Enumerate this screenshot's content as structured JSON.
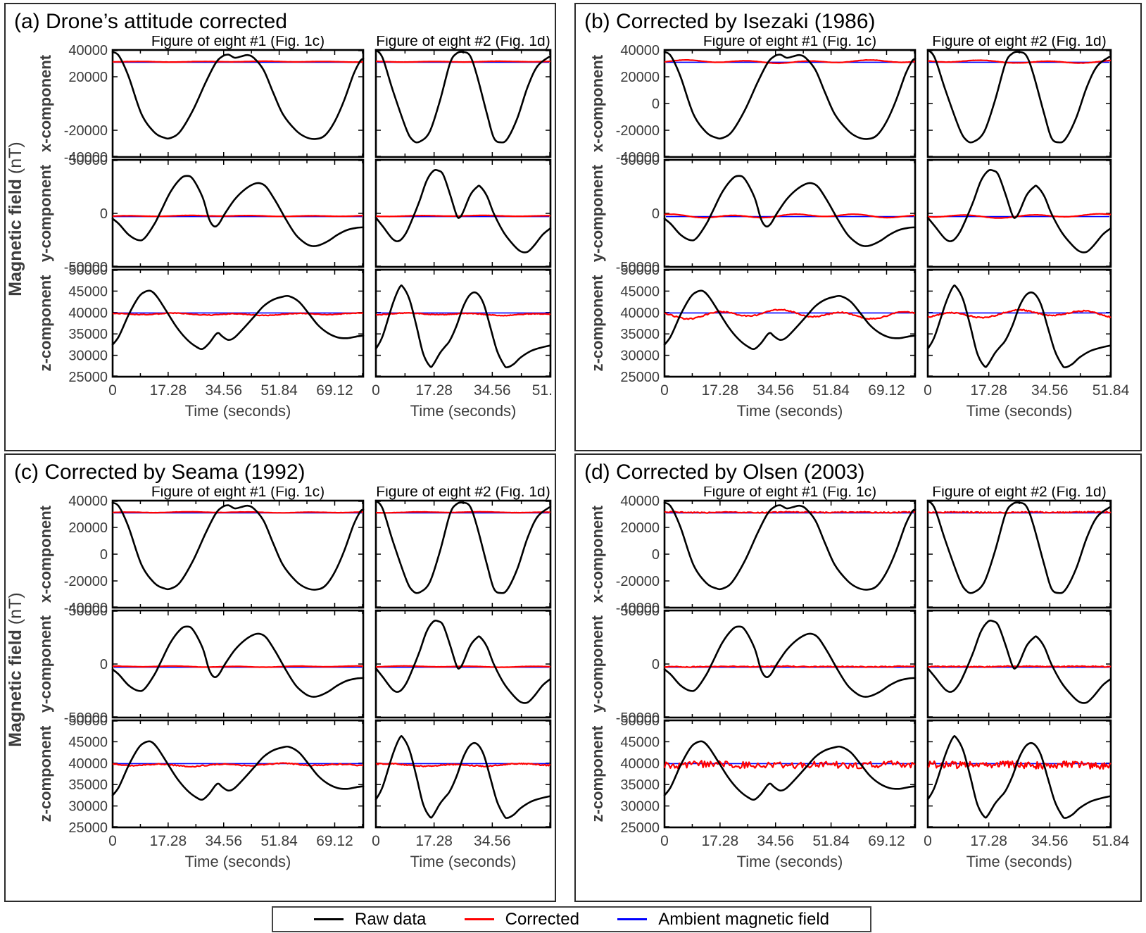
{
  "chart_data": {
    "type": "line",
    "figure_kind": "multi-panel magnetometer calibration comparison",
    "legend": {
      "position": "bottom",
      "entries": [
        {
          "label": "Raw data",
          "color": "#000000"
        },
        {
          "label": "Corrected",
          "color": "#ff0000"
        },
        {
          "label": "Ambient magnetic field",
          "color": "#0000ff"
        }
      ]
    },
    "ylabel": {
      "bold": "Magnetic field",
      "normal": " (nT)"
    },
    "columns": [
      {
        "id": "fig8_1",
        "title": "Figure of eight #1  (Fig. 1c)",
        "xlabel": "Time (seconds)",
        "xlim": [
          0,
          78
        ],
        "xticks": [
          0,
          17.28,
          34.56,
          51.84,
          69.12
        ],
        "minor_step": 8.64
      },
      {
        "id": "fig8_2",
        "title": "Figure of eight #2 (Fig. 1d)",
        "xlabel": "Time (seconds)",
        "xlim": [
          0,
          51.84
        ],
        "xticks": [
          0,
          17.28,
          34.56,
          51.84
        ],
        "minor_step": 8.64
      }
    ],
    "rows": [
      {
        "component": "x-component",
        "key": "x",
        "ylim": [
          -40000,
          40000
        ],
        "yticks": [
          40000,
          20000,
          0,
          -20000,
          -40000
        ]
      },
      {
        "component": "y-component",
        "key": "y",
        "ylim": [
          -50000,
          50000
        ],
        "yticks": [
          50000,
          0,
          -50000
        ]
      },
      {
        "component": "z-component",
        "key": "z",
        "ylim": [
          25000,
          50000
        ],
        "yticks": [
          50000,
          45000,
          40000,
          35000,
          30000,
          25000
        ]
      }
    ],
    "ambient": {
      "x": 30800,
      "y": -3000,
      "z": 39900
    },
    "corrected_base": {
      "x": 31300,
      "y": -2400,
      "z": 39600
    },
    "raw": {
      "fig8_1": {
        "x": [
          [
            0,
            38500
          ],
          [
            2,
            35500
          ],
          [
            5,
            20000
          ],
          [
            9,
            -8000
          ],
          [
            13,
            -21500
          ],
          [
            16,
            -25500
          ],
          [
            18,
            -25800
          ],
          [
            21,
            -21000
          ],
          [
            25,
            -5000
          ],
          [
            29,
            16000
          ],
          [
            32,
            30000
          ],
          [
            34,
            35000
          ],
          [
            36,
            36500
          ],
          [
            38,
            34200
          ],
          [
            40,
            35200
          ],
          [
            42,
            36200
          ],
          [
            44,
            34000
          ],
          [
            47,
            25000
          ],
          [
            50,
            8000
          ],
          [
            53,
            -8000
          ],
          [
            57,
            -20000
          ],
          [
            60,
            -25000
          ],
          [
            63,
            -26500
          ],
          [
            66,
            -24000
          ],
          [
            69,
            -14000
          ],
          [
            72,
            2000
          ],
          [
            75,
            22000
          ],
          [
            77,
            31500
          ],
          [
            78,
            33500
          ]
        ],
        "y": [
          [
            0,
            -5000
          ],
          [
            2,
            -10000
          ],
          [
            5,
            -20000
          ],
          [
            8,
            -25000
          ],
          [
            10,
            -23000
          ],
          [
            13,
            -10000
          ],
          [
            15,
            2000
          ],
          [
            18,
            20000
          ],
          [
            21,
            32000
          ],
          [
            23,
            35000
          ],
          [
            25,
            32000
          ],
          [
            28,
            15000
          ],
          [
            30,
            -5000
          ],
          [
            31.5,
            -12000
          ],
          [
            33,
            -10000
          ],
          [
            35,
            0
          ],
          [
            38,
            13000
          ],
          [
            41,
            22000
          ],
          [
            44,
            27500
          ],
          [
            46,
            28000
          ],
          [
            48,
            24000
          ],
          [
            51,
            10000
          ],
          [
            54,
            -6000
          ],
          [
            57,
            -20000
          ],
          [
            60,
            -28000
          ],
          [
            62,
            -30500
          ],
          [
            64,
            -30000
          ],
          [
            67,
            -26000
          ],
          [
            70,
            -20000
          ],
          [
            73,
            -15500
          ],
          [
            76,
            -13500
          ],
          [
            78,
            -13000
          ]
        ],
        "z": [
          [
            0,
            32500
          ],
          [
            2,
            34500
          ],
          [
            5,
            39500
          ],
          [
            8,
            43500
          ],
          [
            10,
            44800
          ],
          [
            12,
            45000
          ],
          [
            14,
            43500
          ],
          [
            17,
            40000
          ],
          [
            20,
            36500
          ],
          [
            23,
            33800
          ],
          [
            26,
            32000
          ],
          [
            28,
            31500
          ],
          [
            30,
            32800
          ],
          [
            32,
            34800
          ],
          [
            33,
            35200
          ],
          [
            34,
            34500
          ],
          [
            36,
            33600
          ],
          [
            38,
            34200
          ],
          [
            41,
            36500
          ],
          [
            44,
            39000
          ],
          [
            47,
            41500
          ],
          [
            50,
            43000
          ],
          [
            53,
            43700
          ],
          [
            55,
            43800
          ],
          [
            58,
            42500
          ],
          [
            61,
            39800
          ],
          [
            64,
            37000
          ],
          [
            67,
            35200
          ],
          [
            70,
            34200
          ],
          [
            73,
            34000
          ],
          [
            76,
            34400
          ],
          [
            78,
            34600
          ]
        ]
      },
      "fig8_2": {
        "x": [
          [
            0,
            40000
          ],
          [
            2,
            34000
          ],
          [
            5,
            10000
          ],
          [
            9,
            -19000
          ],
          [
            11,
            -27500
          ],
          [
            13,
            -28500
          ],
          [
            16,
            -21000
          ],
          [
            19,
            2000
          ],
          [
            22,
            30000
          ],
          [
            24,
            37500
          ],
          [
            26,
            38500
          ],
          [
            28,
            35500
          ],
          [
            30,
            21000
          ],
          [
            33,
            -8000
          ],
          [
            35,
            -25500
          ],
          [
            37,
            -29000
          ],
          [
            39,
            -26500
          ],
          [
            42,
            -11000
          ],
          [
            45,
            12000
          ],
          [
            48,
            28000
          ],
          [
            51.8,
            35500
          ]
        ],
        "y": [
          [
            0,
            -4000
          ],
          [
            2,
            -12000
          ],
          [
            5,
            -24000
          ],
          [
            7,
            -25500
          ],
          [
            9,
            -18000
          ],
          [
            11,
            -4000
          ],
          [
            13,
            12000
          ],
          [
            15,
            30000
          ],
          [
            17,
            39500
          ],
          [
            18.5,
            40000
          ],
          [
            20,
            36000
          ],
          [
            22,
            18000
          ],
          [
            24,
            -2000
          ],
          [
            25,
            -3500
          ],
          [
            26,
            2000
          ],
          [
            28,
            17000
          ],
          [
            30,
            24500
          ],
          [
            31,
            25000
          ],
          [
            33,
            16000
          ],
          [
            35,
            0
          ],
          [
            38,
            -18000
          ],
          [
            41,
            -30000
          ],
          [
            43,
            -35500
          ],
          [
            45,
            -36000
          ],
          [
            47,
            -30000
          ],
          [
            49.5,
            -20000
          ],
          [
            51.8,
            -14000
          ]
        ],
        "z": [
          [
            0,
            31500
          ],
          [
            2,
            34500
          ],
          [
            5,
            42000
          ],
          [
            7,
            45800
          ],
          [
            8,
            46000
          ],
          [
            10,
            43000
          ],
          [
            12,
            37000
          ],
          [
            14,
            30500
          ],
          [
            16,
            27500
          ],
          [
            17,
            27800
          ],
          [
            19,
            30500
          ],
          [
            20.5,
            32000
          ],
          [
            22,
            33500
          ],
          [
            24,
            37000
          ],
          [
            26,
            41500
          ],
          [
            28,
            44200
          ],
          [
            30,
            44500
          ],
          [
            32,
            42000
          ],
          [
            34,
            36500
          ],
          [
            36,
            31000
          ],
          [
            38,
            27800
          ],
          [
            39,
            27200
          ],
          [
            41,
            28000
          ],
          [
            43,
            29500
          ],
          [
            46,
            31000
          ],
          [
            49,
            31800
          ],
          [
            51.8,
            32300
          ]
        ]
      }
    },
    "panels": [
      {
        "id": "a",
        "title": "(a) Drone’s attitude corrected",
        "show_ylabel": true,
        "yticks_row1_override": [
          40000,
          20000,
          -20000,
          -40000
        ],
        "noise": {
          "slow": 350,
          "fast": 70
        }
      },
      {
        "id": "b",
        "title": "(b) Corrected by Isezaki (1986)",
        "show_ylabel": false,
        "noise": {
          "slow": 1300,
          "fast": 110
        }
      },
      {
        "id": "c",
        "title": "(c) Corrected by Seama (1992)",
        "show_ylabel": true,
        "xtick_labels_col2_override": [
          0,
          17.28,
          34.56
        ],
        "noise": {
          "slow": 420,
          "fast": 100
        }
      },
      {
        "id": "d",
        "title": "(d) Corrected by Olsen (2003)",
        "show_ylabel": false,
        "noise": {
          "slow": 220,
          "fast": 650
        }
      }
    ],
    "style": {
      "axis_color": "#000000",
      "tick_label_color": "#3c3c3c",
      "raw_width": 2.6,
      "corrected_width": 2.2,
      "ambient_width": 1.6
    }
  }
}
